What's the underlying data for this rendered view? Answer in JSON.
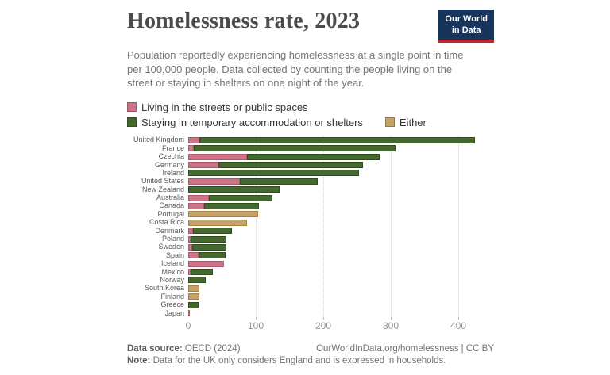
{
  "header": {
    "title": "Homelessness rate, 2023",
    "logo": {
      "line1": "Our World",
      "line2": "in Data"
    }
  },
  "subtitle": "Population reportedly experiencing homelessness at a single point in time per 100,000 people. Data collected by counting the people living on the street or staying in shelters on one night of the year.",
  "legend": [
    {
      "label": "Living in the streets or public spaces",
      "color": "#ce7287",
      "row": 1
    },
    {
      "label": "Staying in temporary accommodation or shelters",
      "color": "#45682f",
      "row": 2
    },
    {
      "label": "Either",
      "color": "#c7a266",
      "row": 2
    }
  ],
  "chart_data": {
    "type": "bar",
    "orientation": "horizontal",
    "title": "Homelessness rate, 2023",
    "xlabel": "",
    "ylabel": "",
    "unit": "per 100,000 people",
    "xlim": [
      0,
      450
    ],
    "x_ticks": [
      0,
      100,
      200,
      300,
      400
    ],
    "grid": "vertical-dotted",
    "series_names": [
      "Living in the streets or public spaces",
      "Staying in temporary accommodation or shelters",
      "Either"
    ],
    "colors": {
      "streets": "#ce7287",
      "shelters": "#45682f",
      "either": "#c7a266"
    },
    "rows": [
      {
        "country": "United Kingdom",
        "streets": 16,
        "shelters": 409,
        "either": 0
      },
      {
        "country": "France",
        "streets": 8,
        "shelters": 299,
        "either": 0
      },
      {
        "country": "Czechia",
        "streets": 87,
        "shelters": 197,
        "either": 0
      },
      {
        "country": "Germany",
        "streets": 45,
        "shelters": 214,
        "either": 0
      },
      {
        "country": "Ireland",
        "streets": 0,
        "shelters": 253,
        "either": 0
      },
      {
        "country": "United States",
        "streets": 77,
        "shelters": 115,
        "either": 0
      },
      {
        "country": "New Zealand",
        "streets": 0,
        "shelters": 135,
        "either": 0
      },
      {
        "country": "Australia",
        "streets": 31,
        "shelters": 94,
        "either": 0
      },
      {
        "country": "Canada",
        "streets": 24,
        "shelters": 81,
        "either": 0
      },
      {
        "country": "Portugal",
        "streets": 0,
        "shelters": 0,
        "either": 103
      },
      {
        "country": "Costa Rica",
        "streets": 0,
        "shelters": 0,
        "either": 87
      },
      {
        "country": "Denmark",
        "streets": 7,
        "shelters": 58,
        "either": 0
      },
      {
        "country": "Poland",
        "streets": 3,
        "shelters": 54,
        "either": 0
      },
      {
        "country": "Sweden",
        "streets": 6,
        "shelters": 50,
        "either": 0
      },
      {
        "country": "Spain",
        "streets": 15,
        "shelters": 40,
        "either": 0
      },
      {
        "country": "Iceland",
        "streets": 53,
        "shelters": 0,
        "either": 0
      },
      {
        "country": "Mexico",
        "streets": 3,
        "shelters": 34,
        "either": 0
      },
      {
        "country": "Norway",
        "streets": 0,
        "shelters": 26,
        "either": 0
      },
      {
        "country": "South Korea",
        "streets": 0,
        "shelters": 0,
        "either": 16
      },
      {
        "country": "Finland",
        "streets": 0,
        "shelters": 0,
        "either": 16
      },
      {
        "country": "Greece",
        "streets": 0,
        "shelters": 15,
        "either": 0
      },
      {
        "country": "Japan",
        "streets": 2,
        "shelters": 0,
        "either": 0
      }
    ]
  },
  "footer": {
    "source_label": "Data source:",
    "source_value": "OECD (2024)",
    "attribution": "OurWorldInData.org/homelessness | CC BY",
    "note_label": "Note:",
    "note_value": "Data for the UK only considers England and is expressed in households."
  }
}
